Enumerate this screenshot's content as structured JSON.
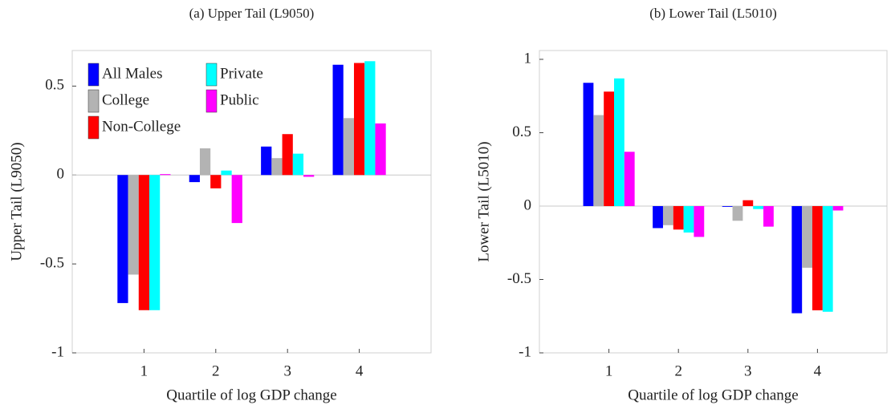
{
  "chart_data": [
    {
      "type": "bar",
      "title": "(a) Upper Tail (L9050)",
      "ylabel": "Upper Tail (L9050)",
      "xlabel": "Quartile of log GDP change",
      "categories": [
        "1",
        "2",
        "3",
        "4"
      ],
      "ylim": [
        -1,
        0.7
      ],
      "yticks": [
        -1,
        -0.5,
        0,
        0.5
      ],
      "legend": "upper left",
      "series": [
        {
          "name": "All Males",
          "color": "#0000ff",
          "values": [
            -0.72,
            -0.04,
            0.16,
            0.62
          ]
        },
        {
          "name": "College",
          "color": "#b3b3b3",
          "values": [
            -0.56,
            0.15,
            0.095,
            0.32
          ]
        },
        {
          "name": "Non-College",
          "color": "#ff0000",
          "values": [
            -0.76,
            -0.075,
            0.23,
            0.63
          ]
        },
        {
          "name": "Private",
          "color": "#00ffff",
          "values": [
            -0.76,
            0.025,
            0.12,
            0.64
          ]
        },
        {
          "name": "Public",
          "color": "#ff00ff",
          "values": [
            0.005,
            -0.27,
            -0.01,
            0.29
          ]
        }
      ]
    },
    {
      "type": "bar",
      "title": "(b) Lower Tail (L5010)",
      "ylabel": "Lower Tail (L5010)",
      "xlabel": "Quartile of log GDP change",
      "categories": [
        "1",
        "2",
        "3",
        "4"
      ],
      "ylim": [
        -1,
        1.06
      ],
      "yticks": [
        -1,
        -0.5,
        0,
        0.5,
        1
      ],
      "series": [
        {
          "color": "#0000ff",
          "values": [
            0.84,
            -0.15,
            -0.005,
            -0.73
          ]
        },
        {
          "color": "#b3b3b3",
          "values": [
            0.62,
            -0.13,
            -0.1,
            -0.42
          ]
        },
        {
          "color": "#ff0000",
          "values": [
            0.78,
            -0.16,
            0.04,
            -0.71
          ]
        },
        {
          "color": "#00ffff",
          "values": [
            0.87,
            -0.18,
            -0.02,
            -0.72
          ]
        },
        {
          "color": "#ff00ff",
          "values": [
            0.37,
            -0.21,
            -0.14,
            -0.03
          ]
        }
      ]
    }
  ]
}
